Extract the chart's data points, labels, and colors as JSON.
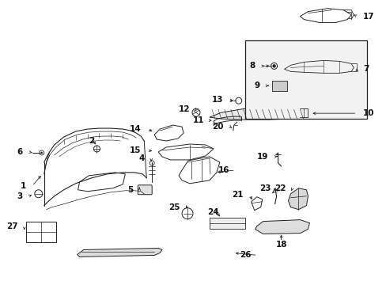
{
  "bg_color": "#ffffff",
  "line_color": "#222222",
  "fig_width": 4.89,
  "fig_height": 3.6,
  "dpi": 100
}
